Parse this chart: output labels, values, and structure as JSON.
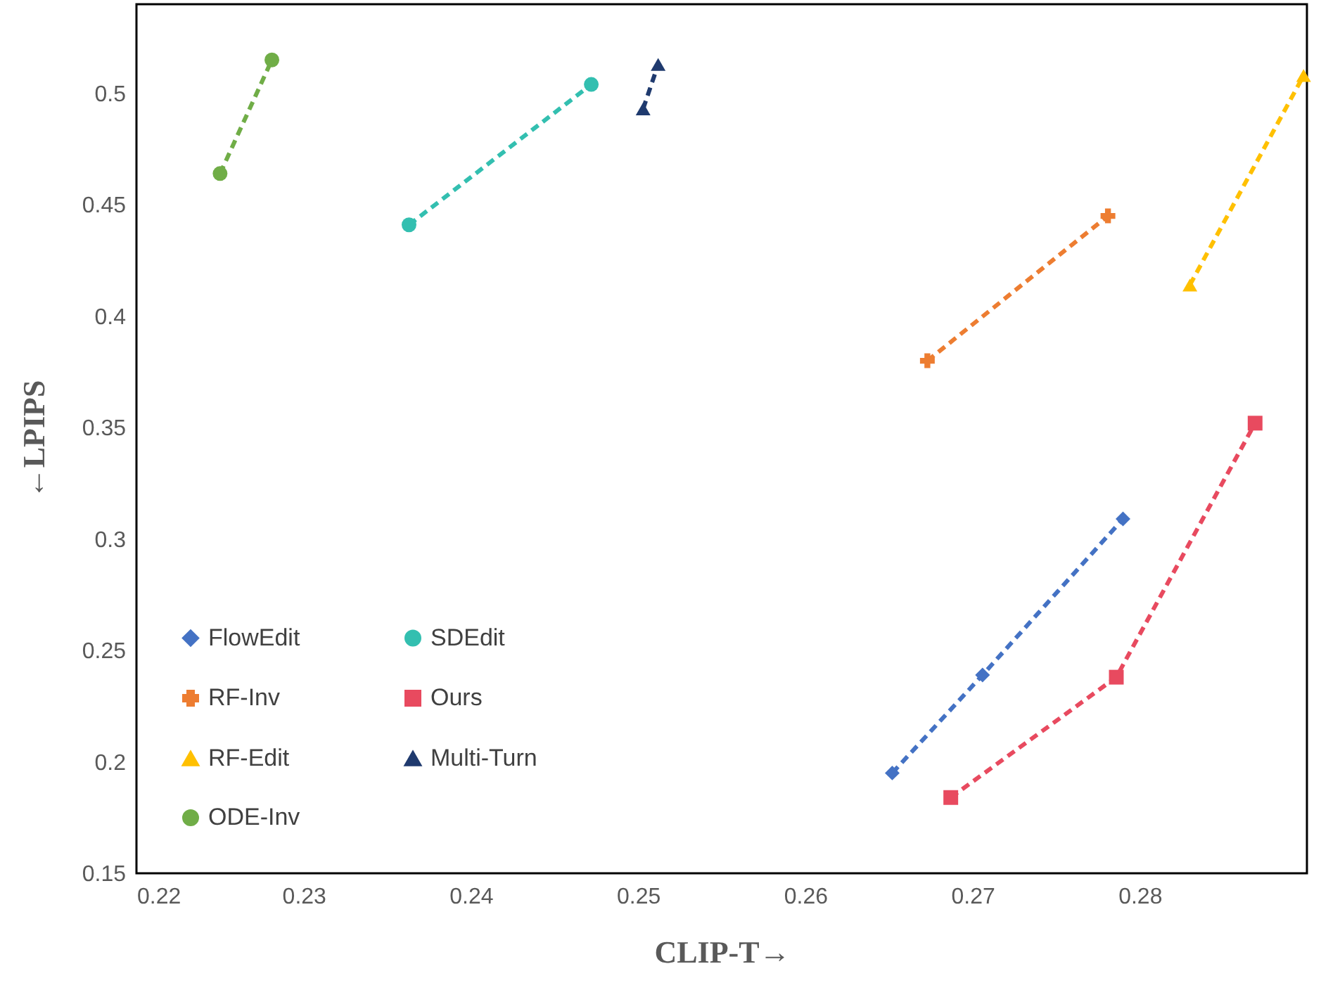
{
  "chart_data": {
    "type": "line",
    "xlabel": "CLIP-T→",
    "ylabel": "←LPIPS",
    "xlim": [
      0.22,
      0.29
    ],
    "xticks": [
      0.22,
      0.23,
      0.24,
      0.25,
      0.26,
      0.27,
      0.28
    ],
    "ylim": [
      0.15,
      0.54
    ],
    "yticks": [
      0.15,
      0.2,
      0.25,
      0.3,
      0.35,
      0.4,
      0.45,
      0.5
    ],
    "grid": false,
    "legend": "bottom left",
    "line_style": "dashed",
    "series": [
      {
        "name": "FlowEdit",
        "color": "#4472c4",
        "marker": "diamond",
        "x": [
          0.2652,
          0.2706,
          0.279
        ],
        "values": [
          0.195,
          0.239,
          0.309
        ]
      },
      {
        "name": "RF-Inv",
        "color": "#ed7d31",
        "marker": "cross",
        "x": [
          0.2673,
          0.2781
        ],
        "values": [
          0.38,
          0.445
        ]
      },
      {
        "name": "RF-Edit",
        "color": "#ffc000",
        "marker": "triangle",
        "x": [
          0.283,
          0.2898
        ],
        "values": [
          0.414,
          0.508
        ]
      },
      {
        "name": "ODE-Inv",
        "color": "#70ad47",
        "marker": "circle",
        "x": [
          0.225,
          0.2281
        ],
        "values": [
          0.464,
          0.515
        ]
      },
      {
        "name": "SDEdit",
        "color": "#33bfb0",
        "marker": "circle",
        "x": [
          0.2363,
          0.2472
        ],
        "values": [
          0.441,
          0.504
        ]
      },
      {
        "name": "Ours",
        "color": "#e84a5f",
        "marker": "square",
        "x": [
          0.2687,
          0.2786,
          0.2869
        ],
        "values": [
          0.184,
          0.238,
          0.352
        ]
      },
      {
        "name": "Multi-Turn",
        "color": "#1f3a6e",
        "marker": "triangle",
        "x": [
          0.2503,
          0.2512
        ],
        "values": [
          0.493,
          0.513
        ]
      }
    ]
  }
}
